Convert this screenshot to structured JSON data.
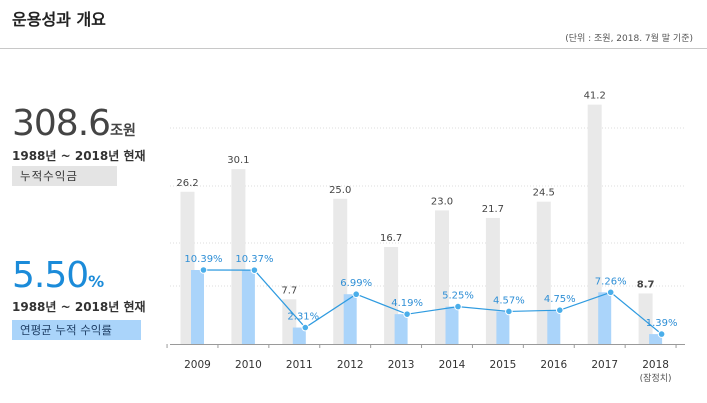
{
  "header": {
    "title": "운용성과 개요",
    "unit_note": "(단위 : 조원, 2018. 7월 말 기준)"
  },
  "summary": {
    "cumulative_value": "308.6",
    "cumulative_unit": "조원",
    "cumulative_period": "1988년 ~ 2018년 현재",
    "cumulative_label": "누적수익금",
    "avg_return_value": "5.50",
    "avg_return_unit": "%",
    "avg_return_period": "1988년 ~ 2018년 현재",
    "avg_return_label": "연평균 누적 수익률"
  },
  "colors": {
    "bar_gray": "#e9e9e9",
    "bar_blue": "#aad4fa",
    "line": "#2f9be0",
    "point_fill": "#4aaeea",
    "return_label": "#2f8fd6",
    "value_label": "#444444"
  },
  "chart_data": {
    "type": "bar",
    "categories": [
      "2009",
      "2010",
      "2011",
      "2012",
      "2013",
      "2014",
      "2015",
      "2016",
      "2017",
      "2018"
    ],
    "category_notes": [
      "",
      "",
      "",
      "",
      "",
      "",
      "",
      "",
      "",
      "(잠정치)"
    ],
    "series": [
      {
        "values": [
          26.2,
          30.1,
          7.7,
          25.0,
          16.7,
          23.0,
          21.7,
          24.5,
          41.2,
          8.7
        ],
        "labels": [
          "26.2",
          "30.1",
          "7.7",
          "25.0",
          "16.7",
          "23.0",
          "21.7",
          "24.5",
          "41.2",
          "8.7"
        ]
      },
      {
        "values": [
          10.39,
          10.37,
          2.31,
          6.99,
          4.19,
          5.25,
          4.57,
          4.75,
          7.26,
          1.39
        ],
        "labels": [
          "10.39%",
          "10.37%",
          "2.31%",
          "6.99%",
          "4.19%",
          "5.25%",
          "4.57%",
          "4.75%",
          "7.26%",
          "1.39%"
        ]
      }
    ],
    "ylim": [
      0,
      42
    ],
    "returns_ylim": [
      0,
      12.5
    ],
    "grid": true
  }
}
